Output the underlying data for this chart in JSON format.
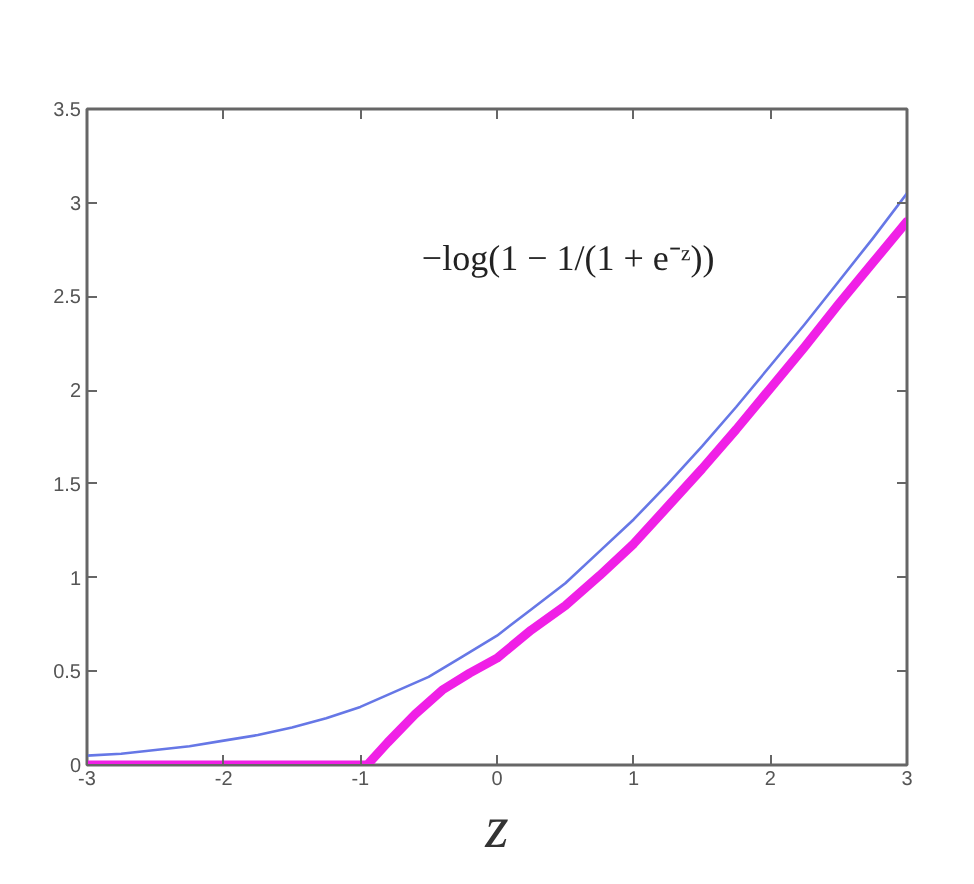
{
  "chart_data": {
    "type": "line",
    "xlabel": "z",
    "annotations": [
      "−log(1 − 1/(1 + e⁻ᶻ))"
    ],
    "xlim": [
      -3,
      3
    ],
    "ylim": [
      0,
      3.5
    ],
    "xticks": [
      -3,
      -2,
      -1,
      0,
      1,
      2,
      3
    ],
    "yticks": [
      0,
      0.5,
      1,
      1.5,
      2,
      2.5,
      3,
      3.5
    ],
    "grid": false,
    "line_style": "solid",
    "series": [
      {
        "color": "#6677e6",
        "x": [
          -3,
          -2.75,
          -2.5,
          -2.25,
          -2,
          -1.75,
          -1.5,
          -1.25,
          -1,
          -0.75,
          -0.5,
          -0.25,
          0,
          0.25,
          0.5,
          0.75,
          1,
          1.25,
          1.5,
          1.75,
          2,
          2.25,
          2.5,
          2.75,
          3
        ],
        "values": [
          0.05,
          0.06,
          0.08,
          0.1,
          0.13,
          0.16,
          0.2,
          0.25,
          0.31,
          0.39,
          0.47,
          0.58,
          0.69,
          0.83,
          0.97,
          1.14,
          1.31,
          1.5,
          1.7,
          1.91,
          2.13,
          2.35,
          2.58,
          2.81,
          3.05
        ]
      },
      {
        "color": "#f020e6",
        "x": [
          -3,
          -2.5,
          -2,
          -1.5,
          -1,
          -0.95,
          -0.8,
          -0.6,
          -0.4,
          -0.2,
          0,
          0.25,
          0.5,
          0.75,
          1,
          1.25,
          1.5,
          1.75,
          2,
          2.25,
          2.5,
          2.75,
          3
        ],
        "values": [
          0,
          0,
          0,
          0,
          0,
          0,
          0.12,
          0.27,
          0.4,
          0.49,
          0.57,
          0.72,
          0.85,
          1.01,
          1.18,
          1.38,
          1.58,
          1.79,
          2.01,
          2.23,
          2.46,
          2.68,
          2.9
        ]
      }
    ]
  }
}
